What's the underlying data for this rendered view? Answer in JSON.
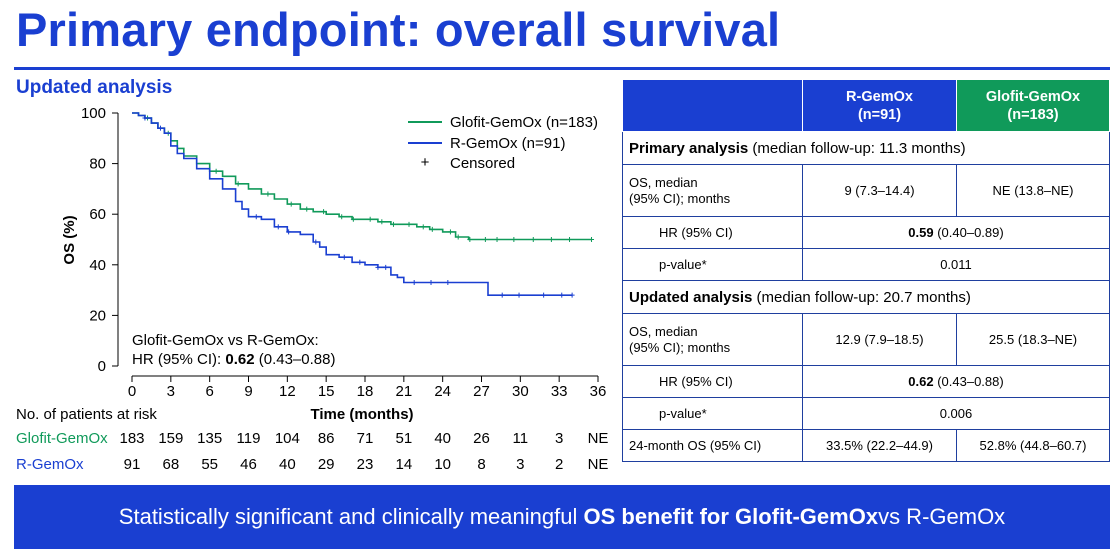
{
  "title": "Primary endpoint: overall survival",
  "subtitle": "Updated analysis",
  "chart_data": {
    "type": "line",
    "subtype": "kaplan-meier",
    "xlabel": "Time (months)",
    "ylabel": "OS (%)",
    "xlim": [
      0,
      36
    ],
    "ylim": [
      0,
      100
    ],
    "xticks": [
      "0",
      "3",
      "6",
      "9",
      "12",
      "15",
      "18",
      "21",
      "24",
      "27",
      "30",
      "33",
      "36"
    ],
    "yticks": [
      "0",
      "20",
      "40",
      "60",
      "80",
      "100"
    ],
    "legend": {
      "placement": "top-right",
      "entries": [
        "Glofit-GemOx (n=183)",
        "R-GemOx (n=91)",
        "Censored"
      ],
      "censored_symbol": "+"
    },
    "annotation": {
      "line1": "Glofit-GemOx vs R-GemOx:",
      "prefix": "HR (95% CI): ",
      "hr": "0.62",
      "ci": " (0.43–0.88)"
    },
    "series": [
      {
        "name": "Glofit-GemOx (n=183)",
        "color": "#109a5a",
        "x": [
          0,
          0.5,
          1,
          1.5,
          2,
          2.5,
          3,
          3.5,
          4,
          5,
          6,
          7,
          8,
          9,
          10,
          11,
          12,
          13,
          14,
          15,
          16,
          17,
          18,
          19,
          20,
          21,
          22,
          23,
          24,
          25,
          26,
          27,
          28,
          30,
          32,
          34,
          35.5
        ],
        "y": [
          100,
          99,
          98,
          96,
          94,
          92,
          89,
          86,
          83,
          80,
          77,
          75,
          72,
          70,
          68,
          66,
          64,
          62,
          61,
          60,
          59,
          58,
          58,
          57,
          56,
          56,
          55,
          54,
          53,
          51,
          50,
          50,
          50,
          50,
          50,
          50,
          50
        ],
        "censored_x": [
          1.2,
          2.8,
          6.5,
          8.2,
          10.5,
          12.3,
          13.5,
          14.8,
          16.2,
          17.1,
          18.4,
          19.3,
          20.2,
          21.4,
          22.5,
          23.2,
          24.6,
          25.2,
          26.1,
          27.3,
          28.2,
          29.5,
          31.0,
          32.4,
          33.8,
          35.5
        ]
      },
      {
        "name": "R-GemOx (n=91)",
        "color": "#1a3fd1",
        "x": [
          0,
          0.5,
          1,
          1.5,
          2,
          2.5,
          3,
          3.5,
          4,
          5,
          6,
          7,
          8,
          8.5,
          9,
          10,
          11,
          12,
          13,
          14,
          14.5,
          15,
          16,
          17,
          18,
          19,
          20,
          20.5,
          21,
          22,
          23,
          24,
          25,
          26,
          27,
          27.5,
          28,
          30,
          32,
          34
        ],
        "y": [
          100,
          99,
          98,
          96,
          94,
          92,
          87,
          84,
          82,
          78,
          74,
          70,
          65,
          62,
          59,
          58,
          55,
          53,
          52,
          49,
          47,
          44,
          43,
          41,
          40,
          39,
          36,
          35,
          33,
          33,
          33,
          33,
          33,
          33,
          33,
          28,
          28,
          28,
          28,
          28
        ],
        "censored_x": [
          1.0,
          2.2,
          9.6,
          11.3,
          12.1,
          14.2,
          16.4,
          17.6,
          19.0,
          19.6,
          21.8,
          23.1,
          24.4,
          28.6,
          29.9,
          31.8,
          33.2,
          34.0
        ]
      }
    ]
  },
  "risk_table": {
    "header": "No. of patients at risk",
    "rows": [
      {
        "label": "Glofit-GemOx",
        "color": "#109a5a",
        "values": [
          "183",
          "159",
          "135",
          "119",
          "104",
          "86",
          "71",
          "51",
          "40",
          "26",
          "11",
          "3",
          "NE"
        ]
      },
      {
        "label": "R-GemOx",
        "color": "#1a3fd1",
        "values": [
          "91",
          "68",
          "55",
          "46",
          "40",
          "29",
          "23",
          "14",
          "10",
          "8",
          "3",
          "2",
          "NE"
        ]
      }
    ]
  },
  "table": {
    "col1_header_line1": "R-GemOx",
    "col1_header_line2": "(n=91)",
    "col2_header_line1": "Glofit-GemOx",
    "col2_header_line2": "(n=183)",
    "primary": {
      "title_bold": "Primary analysis",
      "title_rest": " (median follow-up: 11.3 months)",
      "os_label_line1": "OS, median",
      "os_label_line2": "(95% CI); months",
      "os_rgemox": "9 (7.3–14.4)",
      "os_glofit": "NE (13.8–NE)",
      "hr_label": "HR (95% CI)",
      "hr_value": "0.59",
      "hr_ci": " (0.40–0.89)",
      "p_label": "p-value*",
      "p_value": "0.011"
    },
    "updated": {
      "title_bold": "Updated analysis",
      "title_rest": " (median follow-up: 20.7 months)",
      "os_label_line1": "OS, median",
      "os_label_line2": "(95% CI); months",
      "os_rgemox": "12.9 (7.9–18.5)",
      "os_glofit": "25.5 (18.3–NE)",
      "hr_label": "HR (95% CI)",
      "hr_value": "0.62",
      "hr_ci": " (0.43–0.88)",
      "p_label": "p-value*",
      "p_value": "0.006",
      "m24_label": "24-month OS (95% CI)",
      "m24_rgemox": "33.5% (22.2–44.9)",
      "m24_glofit": "52.8% (44.8–60.7)"
    }
  },
  "banner": {
    "pre": "Statistically significant and clinically meaningful ",
    "bold": "OS benefit for Glofit-GemOx",
    "post": " vs R-GemOx"
  }
}
